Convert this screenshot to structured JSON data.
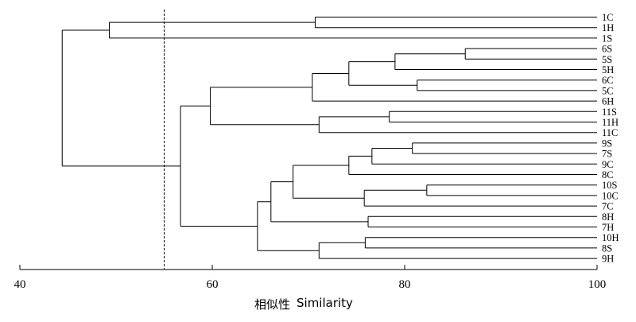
{
  "chart_data": {
    "type": "dendrogram",
    "x_axis": {
      "label_cn": "相似性",
      "label_en": "Similarity",
      "range": [
        40,
        100
      ],
      "ticks": [
        40,
        60,
        80,
        100
      ],
      "tick_labels": [
        "40",
        "60",
        "80",
        "100"
      ]
    },
    "cut_line_similarity": 55,
    "leaves": [
      "1C",
      "1H",
      "1S",
      "6S",
      "5S",
      "5H",
      "6C",
      "5C",
      "6H",
      "11S",
      "11H",
      "11C",
      "9S",
      "7S",
      "9C",
      "8C",
      "10S",
      "10C",
      "7C",
      "8H",
      "7H",
      "10H",
      "8S",
      "9H"
    ],
    "merges": [
      {
        "a": "1C",
        "b": "1H",
        "similarity": 70.7
      },
      {
        "a": "[1C,1H]",
        "b": "1S",
        "similarity": 49.3
      },
      {
        "a": "6S",
        "b": "5S",
        "similarity": 86.3
      },
      {
        "a": "[6S,5S]",
        "b": "5H",
        "similarity": 79.0
      },
      {
        "a": "6C",
        "b": "5C",
        "similarity": 81.3
      },
      {
        "a": "[6S,5S,5H]",
        "b": "[6C,5C]",
        "similarity": 74.2
      },
      {
        "a": "[6S,5S,5H,6C,5C]",
        "b": "6H",
        "similarity": 70.4
      },
      {
        "a": "11S",
        "b": "11H",
        "similarity": 78.4
      },
      {
        "a": "[11S,11H]",
        "b": "11C",
        "similarity": 71.1
      },
      {
        "a": "[5-6 group]",
        "b": "[11 group]",
        "similarity": 59.8
      },
      {
        "a": "9S",
        "b": "7S",
        "similarity": 80.8
      },
      {
        "a": "[9S,7S]",
        "b": "9C",
        "similarity": 76.6
      },
      {
        "a": "[9S,7S,9C]",
        "b": "8C",
        "similarity": 74.2
      },
      {
        "a": "10S",
        "b": "10C",
        "similarity": 82.3
      },
      {
        "a": "[10S,10C]",
        "b": "7C",
        "similarity": 75.8
      },
      {
        "a": "[9S..8C]",
        "b": "[10S,10C,7C]",
        "similarity": 68.4
      },
      {
        "a": "8H",
        "b": "7H",
        "similarity": 76.2
      },
      {
        "a": "[9S..7C]",
        "b": "[8H,7H]",
        "similarity": 66.1
      },
      {
        "a": "10H",
        "b": "8S",
        "similarity": 75.9
      },
      {
        "a": "[10H,8S]",
        "b": "9H",
        "similarity": 71.1
      },
      {
        "a": "[9S..7H]",
        "b": "[10H,8S,9H]",
        "similarity": 64.7
      },
      {
        "a": "[5-6,11 group]",
        "b": "[7-10 group]",
        "similarity": 56.7
      },
      {
        "a": "[1 group]",
        "b": "[rest]",
        "similarity": 44.4
      }
    ]
  }
}
